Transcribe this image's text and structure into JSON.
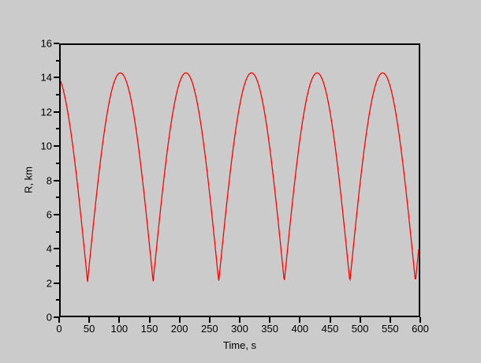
{
  "window": {
    "background_color": "#cbcbcb"
  },
  "chart_data": {
    "type": "line",
    "title": "",
    "xlabel": "Time, s",
    "ylabel": "R, km",
    "xlim": [
      0,
      600
    ],
    "ylim": [
      0,
      16
    ],
    "grid": false,
    "legend": "none",
    "frame": "full-box",
    "axis_color": "#000000",
    "x_ticks": {
      "major_step": 50,
      "minor_step": null,
      "labels": [
        "0",
        "50",
        "100",
        "150",
        "200",
        "250",
        "300",
        "350",
        "400",
        "450",
        "500",
        "550",
        "600"
      ],
      "values": [
        0,
        50,
        100,
        150,
        200,
        250,
        300,
        350,
        400,
        450,
        500,
        550,
        600
      ]
    },
    "y_ticks": {
      "major_step": 2,
      "minor_step": 1,
      "labels": [
        "0",
        "2",
        "4",
        "6",
        "8",
        "10",
        "12",
        "14",
        "16"
      ],
      "values": [
        0,
        2,
        4,
        6,
        8,
        10,
        12,
        14,
        16
      ],
      "minor_values": [
        1,
        3,
        5,
        7,
        9,
        11,
        13,
        15
      ]
    },
    "series": [
      {
        "name": "R",
        "color": "#ff0000",
        "line_width": 1.3,
        "model": {
          "kind": "rectified-sine",
          "formula": "R(t) = r_min + (r_max - r_min) * |sin(pi * (t - t_first_min_s) / period_s)|",
          "r_min": 2.0,
          "r_max": 14.35,
          "period_s": 109.9,
          "t_first_min_s": 45.0
        },
        "sample_step_s": 1,
        "sampled_points_every_25s": [
          [
            0,
            13.9
          ],
          [
            25,
            8.7
          ],
          [
            50,
            3.8
          ],
          [
            75,
            11.3
          ],
          [
            100,
            14.3
          ],
          [
            125,
            11.3
          ],
          [
            150,
            3.7
          ],
          [
            175,
            8.7
          ],
          [
            200,
            13.9
          ],
          [
            225,
            13.2
          ],
          [
            250,
            7.1
          ],
          [
            275,
            5.5
          ],
          [
            300,
            12.4
          ],
          [
            325,
            14.2
          ],
          [
            350,
            10.0
          ],
          [
            375,
            2.1
          ],
          [
            400,
            10.2
          ],
          [
            425,
            14.2
          ],
          [
            450,
            12.3
          ],
          [
            475,
            5.4
          ],
          [
            500,
            7.3
          ],
          [
            525,
            13.3
          ],
          [
            550,
            13.8
          ],
          [
            575,
            8.6
          ],
          [
            600,
            3.9
          ]
        ],
        "key_points": {
          "start": [
            0,
            13.9
          ],
          "end": [
            600,
            3.9
          ],
          "peak_r": 14.35,
          "peaks_t": [
            100,
            210,
            320,
            430,
            539
          ],
          "trough_r": 2.0,
          "troughs_t": [
            45,
            155,
            265,
            375,
            485,
            594
          ]
        }
      }
    ]
  }
}
